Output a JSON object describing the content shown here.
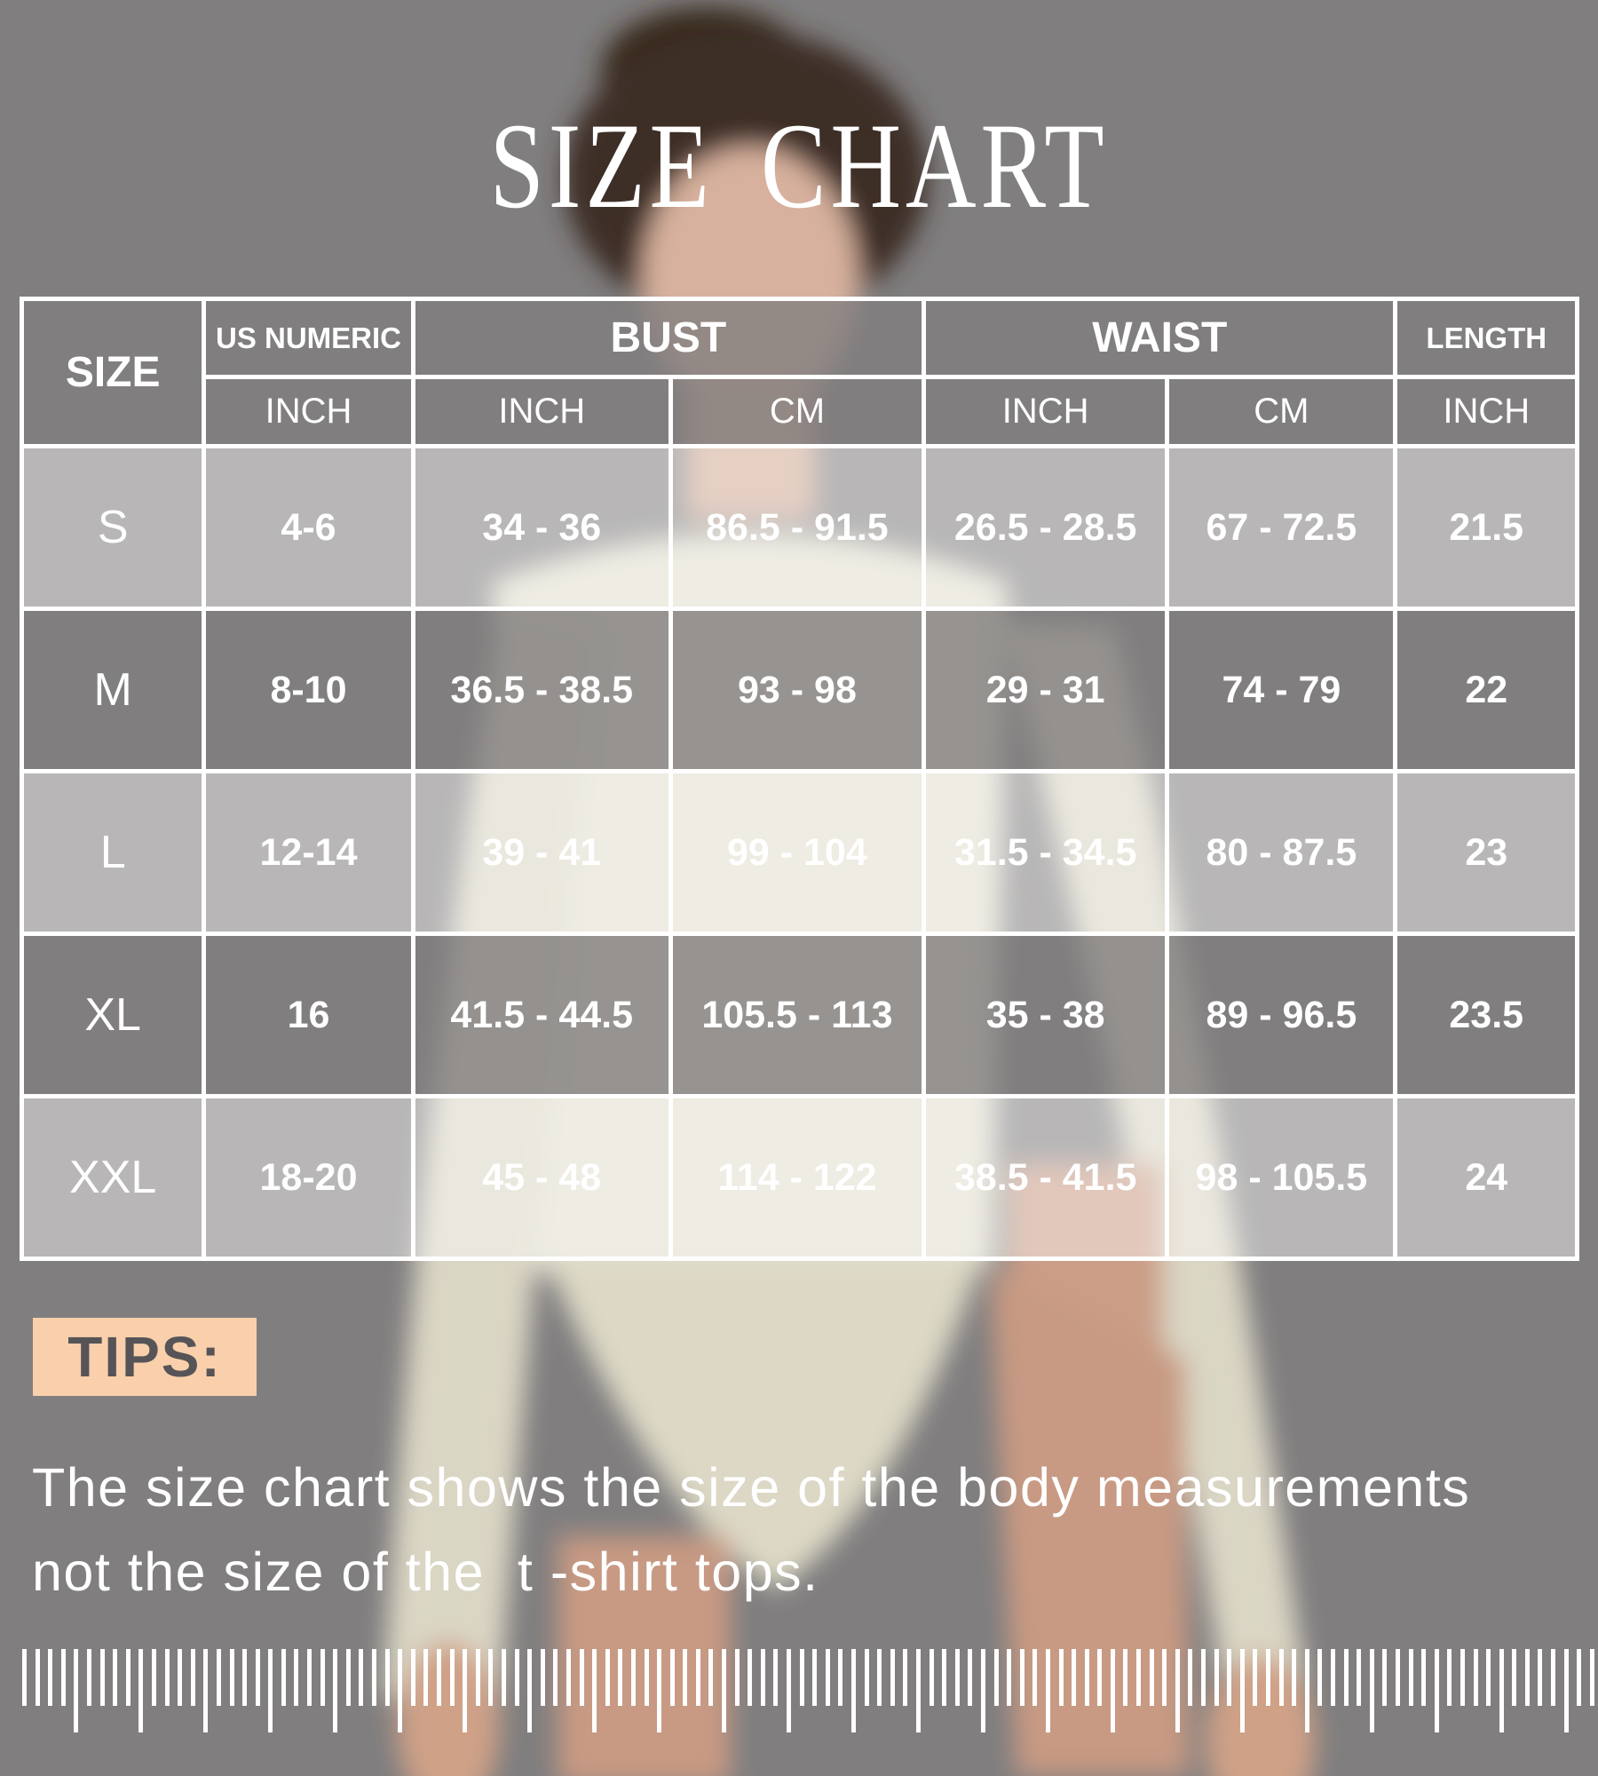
{
  "title": "SIZE CHART",
  "chart_data": {
    "type": "table",
    "title": "SIZE CHART",
    "columns": [
      "SIZE",
      "US NUMERIC (INCH)",
      "BUST (INCH)",
      "BUST (CM)",
      "WAIST (INCH)",
      "WAIST (CM)",
      "LENGTH (INCH)"
    ],
    "rows": [
      [
        "S",
        "4-6",
        "34 - 36",
        "86.5 - 91.5",
        "26.5 - 28.5",
        "67 - 72.5",
        "21.5"
      ],
      [
        "M",
        "8-10",
        "36.5 - 38.5",
        "93 - 98",
        "29 - 31",
        "74 - 79",
        "22"
      ],
      [
        "L",
        "12-14",
        "39 - 41",
        "99 - 104",
        "31.5 - 34.5",
        "80 - 87.5",
        "23"
      ],
      [
        "XL",
        "16",
        "41.5 - 44.5",
        "105.5 - 113",
        "35 - 38",
        "89 - 96.5",
        "23.5"
      ],
      [
        "XXL",
        "18-20",
        "45 - 48",
        "114 - 122",
        "38.5 - 41.5",
        "98 - 105.5",
        "24"
      ]
    ]
  },
  "table": {
    "header": {
      "size": "SIZE",
      "us_numeric": "US NUMERIC",
      "bust": "BUST",
      "waist": "WAIST",
      "length": "LENGTH",
      "units": {
        "us_numeric": "INCH",
        "bust_inch": "INCH",
        "bust_cm": "CM",
        "waist_inch": "INCH",
        "waist_cm": "CM",
        "length_inch": "INCH"
      }
    },
    "rows": [
      {
        "size": "S",
        "us_numeric": "4-6",
        "bust_inch": "34 - 36",
        "bust_cm": "86.5 - 91.5",
        "waist_inch": "26.5 - 28.5",
        "waist_cm": "67 - 72.5",
        "length_inch": "21.5"
      },
      {
        "size": "M",
        "us_numeric": "8-10",
        "bust_inch": "36.5 - 38.5",
        "bust_cm": "93 - 98",
        "waist_inch": "29 - 31",
        "waist_cm": "74 - 79",
        "length_inch": "22"
      },
      {
        "size": "L",
        "us_numeric": "12-14",
        "bust_inch": "39 - 41",
        "bust_cm": "99 - 104",
        "waist_inch": "31.5 - 34.5",
        "waist_cm": "80 - 87.5",
        "length_inch": "23"
      },
      {
        "size": "XL",
        "us_numeric": "16",
        "bust_inch": "41.5 - 44.5",
        "bust_cm": "105.5 - 113",
        "waist_inch": "35 - 38",
        "waist_cm": "89 - 96.5",
        "length_inch": "23.5"
      },
      {
        "size": "XXL",
        "us_numeric": "18-20",
        "bust_inch": "45 - 48",
        "bust_cm": "114 - 122",
        "waist_inch": "38.5 - 41.5",
        "waist_cm": "98 - 105.5",
        "length_inch": "24"
      }
    ]
  },
  "tips": {
    "label": "TIPS:",
    "line1": "The size chart shows the size of the body measurements",
    "line2": "not the size of the  t -shirt tops."
  },
  "ruler": {
    "ticks": 123,
    "long_every": 5
  },
  "colors": {
    "background": "#807e7f",
    "row_light_overlay": "rgba(255,255,255,0.44)",
    "row_dark_overlay": "rgba(128,126,127,0.78)",
    "table_border": "#ffffff",
    "accent_peach": "#f9d0ab",
    "tips_text": "#575458",
    "text_white": "#ffffff"
  }
}
